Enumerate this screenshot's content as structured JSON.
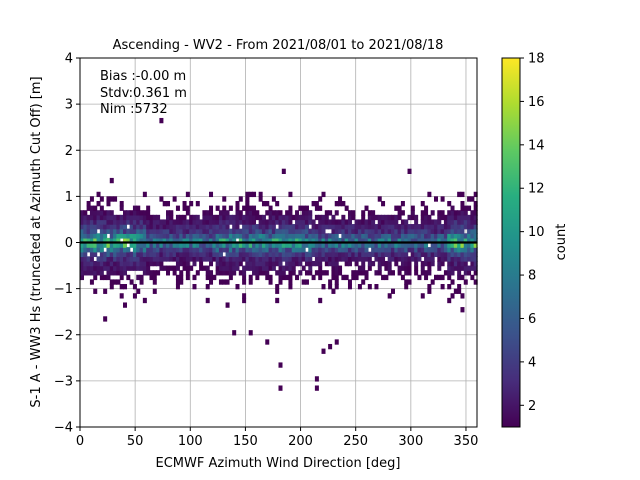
{
  "chart_data": {
    "type": "heatmap",
    "title": "Ascending - WV2 - From 2021/08/01 to 2021/08/18",
    "xlabel": "ECMWF Azimuth Wind Direction [deg]",
    "ylabel": "S-1 A - WW3 Hs (truncated at Azimuth Cut Off) [m]",
    "xlim": [
      0,
      360
    ],
    "ylim": [
      -4,
      4
    ],
    "x_ticks": [
      "0",
      "50",
      "100",
      "150",
      "200",
      "250",
      "300",
      "350"
    ],
    "y_ticks": [
      "−4",
      "−3",
      "−2",
      "−1",
      "0",
      "1",
      "2",
      "3",
      "4"
    ],
    "grid": true,
    "annotations": [
      "Bias :-0.00 m",
      "Stdv:0.361 m",
      "Nim :5732"
    ],
    "zero_line": 0,
    "colorbar": {
      "label": "count",
      "min": 1,
      "max": 18,
      "ticks": [
        "2",
        "4",
        "6",
        "8",
        "10",
        "12",
        "14",
        "16",
        "18"
      ],
      "colormap": "viridis"
    },
    "bin_size": {
      "x": 3,
      "y": 0.1
    },
    "density_profile": [
      {
        "y": 0.6,
        "count": 1.5
      },
      {
        "y": 0.4,
        "count": 2.5
      },
      {
        "y": 0.2,
        "count": 4.5
      },
      {
        "y": 0.1,
        "count": 8
      },
      {
        "y": 0.0,
        "count": 10
      },
      {
        "y": -0.1,
        "count": 7
      },
      {
        "y": -0.2,
        "count": 4
      },
      {
        "y": -0.4,
        "count": 2
      },
      {
        "y": -0.6,
        "count": 1.5
      }
    ],
    "outlier_points": [
      {
        "x": 73,
        "y": 2.65
      },
      {
        "x": 27,
        "y": 1.35
      },
      {
        "x": 185,
        "y": 1.55
      },
      {
        "x": 299,
        "y": 1.55
      },
      {
        "x": 180,
        "y": -2.67
      },
      {
        "x": 215,
        "y": -2.92
      },
      {
        "x": 215,
        "y": -3.15
      },
      {
        "x": 181,
        "y": -3.17
      },
      {
        "x": 170,
        "y": -2.2
      },
      {
        "x": 233,
        "y": -2.2
      },
      {
        "x": 225,
        "y": -2.25
      },
      {
        "x": 220,
        "y": -2.35
      },
      {
        "x": 155,
        "y": -1.95
      },
      {
        "x": 347,
        "y": -1.45
      },
      {
        "x": 22,
        "y": -1.68
      },
      {
        "x": 140,
        "y": -1.95
      }
    ]
  }
}
